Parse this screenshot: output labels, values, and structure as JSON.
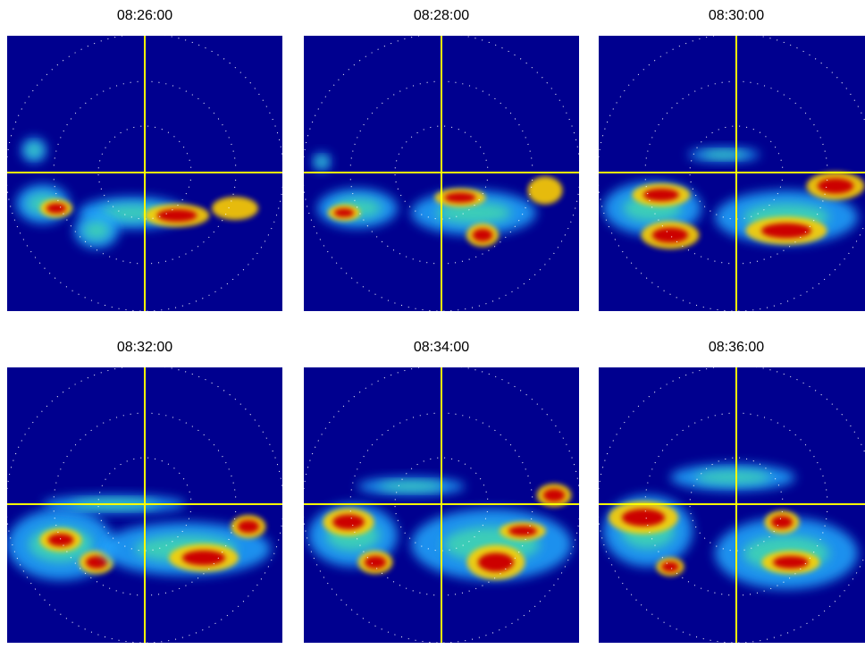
{
  "panels": [
    {
      "title": "08:26:00"
    },
    {
      "title": "08:28:00"
    },
    {
      "title": "08:30:00"
    },
    {
      "title": "08:32:00"
    },
    {
      "title": "08:34:00"
    },
    {
      "title": "08:36:00"
    }
  ]
}
